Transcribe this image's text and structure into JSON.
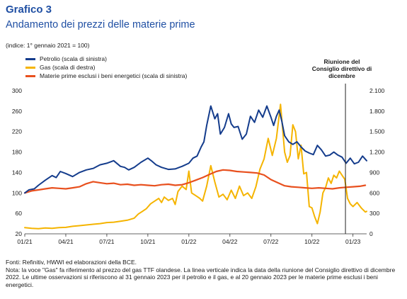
{
  "header": {
    "title": "Grafico 3",
    "subtitle": "Andamento dei prezzi delle materie prime",
    "units": "(indice: 1° gennaio 2021 = 100)"
  },
  "annotation": "Riunione del Consiglio direttivo di dicembre",
  "notes": {
    "sources": "Fonti: Refinitiv, HWWI ed elaborazioni della BCE.",
    "note": "Nota: la voce \"Gas\" fa riferimento al prezzo del gas TTF olandese. La linea verticale indica la data della riunione del Consiglio direttivo di dicembre 2022. Le ultime osservazioni si riferiscono al 31 gennaio 2023 per il petrolio e il gas, e al 20 gennaio 2023 per le materie prime esclusi i beni energetici."
  },
  "chart_data": {
    "type": "line",
    "x_tick_labels": [
      "01/21",
      "04/21",
      "07/21",
      "10/21",
      "01/22",
      "04/22",
      "07/22",
      "10/22",
      "01/23"
    ],
    "x_ticks_month_index": [
      0,
      3,
      6,
      9,
      12,
      15,
      18,
      21,
      24
    ],
    "x_range_month_index": [
      0,
      25
    ],
    "y_left": {
      "ylim": [
        20,
        300
      ],
      "ticks": [
        20,
        60,
        100,
        140,
        180,
        220,
        260,
        300
      ]
    },
    "y_right": {
      "ylim": [
        0,
        2100
      ],
      "ticks": [
        0,
        300,
        600,
        900,
        1200,
        1500,
        1800,
        2100
      ],
      "tick_labels": [
        "0",
        "300",
        "600",
        "900",
        "1.200",
        "1.500",
        "1.800",
        "2.100"
      ]
    },
    "vline_month_index": 23.45,
    "grid": false,
    "legend_placement": "top-left",
    "series": [
      {
        "name": "Petrolio (scala di sinistra)",
        "axis": "left",
        "color": "#143c8c",
        "x": [
          0,
          0.3,
          0.7,
          1,
          1.5,
          2,
          2.3,
          2.6,
          3,
          3.5,
          4,
          4.5,
          5,
          5.5,
          6,
          6.5,
          7,
          7.3,
          7.6,
          8,
          8.5,
          9,
          9.3,
          9.6,
          10,
          10.5,
          11,
          11.5,
          12,
          12.3,
          12.6,
          12.9,
          13.1,
          13.3,
          13.6,
          13.9,
          14.1,
          14.3,
          14.6,
          14.9,
          15.1,
          15.3,
          15.6,
          15.9,
          16.2,
          16.5,
          16.8,
          17.1,
          17.4,
          17.7,
          18,
          18.2,
          18.4,
          18.6,
          18.8,
          19,
          19.3,
          19.6,
          19.9,
          20.2,
          20.5,
          20.8,
          21.1,
          21.4,
          21.7,
          22,
          22.3,
          22.6,
          22.9,
          23.2,
          23.5,
          23.8,
          24.1,
          24.4,
          24.7,
          25
        ],
        "values": [
          100,
          106,
          108,
          115,
          125,
          134,
          130,
          142,
          138,
          132,
          140,
          145,
          148,
          155,
          158,
          163,
          152,
          150,
          145,
          150,
          160,
          168,
          162,
          155,
          150,
          146,
          147,
          152,
          158,
          168,
          172,
          190,
          200,
          232,
          270,
          245,
          255,
          215,
          228,
          255,
          235,
          228,
          230,
          205,
          215,
          250,
          238,
          262,
          248,
          270,
          248,
          232,
          250,
          262,
          240,
          212,
          200,
          195,
          200,
          190,
          182,
          178,
          175,
          193,
          184,
          172,
          174,
          180,
          174,
          170,
          158,
          168,
          157,
          160,
          172,
          163
        ]
      },
      {
        "name": "Gas (scala di destra)",
        "axis": "right",
        "color": "#f5b400",
        "x": [
          0,
          0.5,
          1,
          1.5,
          2,
          2.5,
          3,
          3.5,
          4,
          4.5,
          5,
          5.5,
          6,
          6.5,
          7,
          7.5,
          8,
          8.3,
          8.6,
          8.9,
          9.2,
          9.5,
          9.8,
          10,
          10.2,
          10.5,
          10.8,
          11,
          11.2,
          11.5,
          11.8,
          12,
          12.2,
          12.5,
          12.8,
          13,
          13.3,
          13.6,
          13.9,
          14.2,
          14.5,
          14.8,
          15.1,
          15.4,
          15.7,
          16,
          16.3,
          16.6,
          16.9,
          17.2,
          17.5,
          17.8,
          18.1,
          18.4,
          18.7,
          19,
          19.2,
          19.4,
          19.6,
          19.8,
          20,
          20.2,
          20.4,
          20.6,
          20.8,
          21,
          21.2,
          21.4,
          21.6,
          21.8,
          22,
          22.2,
          22.4,
          22.6,
          22.8,
          23,
          23.2,
          23.4,
          23.6,
          23.8,
          24,
          24.3,
          24.6,
          24.9,
          25
        ],
        "values": [
          90,
          80,
          75,
          85,
          80,
          90,
          95,
          110,
          120,
          130,
          140,
          150,
          165,
          170,
          185,
          200,
          230,
          290,
          330,
          370,
          440,
          480,
          520,
          460,
          540,
          490,
          520,
          430,
          620,
          700,
          650,
          920,
          600,
          560,
          520,
          480,
          700,
          1000,
          760,
          540,
          580,
          500,
          640,
          520,
          700,
          560,
          600,
          520,
          690,
          950,
          1100,
          1400,
          1150,
          1400,
          1900,
          1200,
          1050,
          1150,
          1600,
          1500,
          1100,
          1300,
          880,
          900,
          400,
          380,
          250,
          150,
          320,
          600,
          680,
          820,
          740,
          860,
          820,
          920,
          860,
          800,
          520,
          440,
          400,
          460,
          380,
          320,
          330
        ]
      },
      {
        "name": "Materie prime esclusi i beni energetici (scala di sinistra)",
        "axis": "left",
        "color": "#e8501e",
        "x": [
          0,
          0.5,
          1,
          1.5,
          2,
          2.5,
          3,
          3.5,
          4,
          4.5,
          5,
          5.5,
          6,
          6.5,
          7,
          7.5,
          8,
          8.5,
          9,
          9.5,
          10,
          10.5,
          11,
          11.5,
          12,
          12.5,
          13,
          13.5,
          14,
          14.5,
          15,
          15.5,
          16,
          16.5,
          17,
          17.5,
          18,
          18.5,
          19,
          19.5,
          20,
          20.5,
          21,
          21.5,
          22,
          22.5,
          23,
          23.5,
          24,
          24.5,
          24.9
        ],
        "values": [
          100,
          104,
          106,
          108,
          110,
          109,
          108,
          110,
          112,
          118,
          122,
          120,
          118,
          119,
          116,
          117,
          115,
          116,
          115,
          114,
          116,
          117,
          115,
          116,
          120,
          125,
          130,
          136,
          142,
          145,
          144,
          142,
          141,
          140,
          139,
          135,
          126,
          120,
          114,
          112,
          111,
          110,
          109,
          110,
          109,
          108,
          110,
          111,
          112,
          113,
          115
        ]
      }
    ]
  }
}
